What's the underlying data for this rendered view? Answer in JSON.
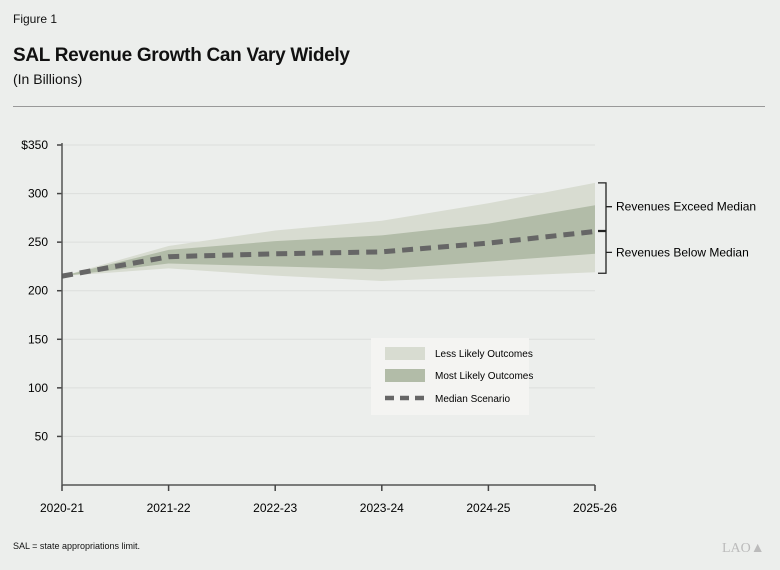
{
  "header": {
    "figure_label": "Figure 1",
    "title": "SAL Revenue Growth Can Vary Widely",
    "subtitle": "(In Billions)"
  },
  "footnote": "SAL = state appropriations limit.",
  "logo_text": "LAO",
  "chart_data": {
    "type": "area",
    "categories": [
      "2020-21",
      "2021-22",
      "2022-23",
      "2023-24",
      "2024-25",
      "2025-26"
    ],
    "ylim": [
      0,
      350
    ],
    "yticks": [
      50,
      100,
      150,
      200,
      250,
      300,
      350
    ],
    "ytick_labels": [
      "50",
      "100",
      "150",
      "200",
      "250",
      "300",
      "$350"
    ],
    "grid": true,
    "legend_position": "center-right",
    "series": [
      {
        "name": "Less Likely Outcomes",
        "type": "band",
        "color": "#d8dcd1",
        "lower": [
          215,
          223,
          215.5,
          210,
          214.5,
          219
        ],
        "upper": [
          215,
          246,
          262,
          272,
          290,
          311
        ]
      },
      {
        "name": "Most Likely Outcomes",
        "type": "band",
        "color": "#b2bca8",
        "lower": [
          215,
          228,
          225,
          222,
          230,
          238
        ],
        "upper": [
          215,
          242,
          251,
          257,
          269,
          288
        ]
      },
      {
        "name": "Median Scenario",
        "type": "line",
        "style": "dashed",
        "color": "#666666",
        "values": [
          215,
          235,
          238,
          240,
          249,
          261
        ]
      }
    ],
    "annotations": [
      "Revenues Exceed Median",
      "Revenues Below Median"
    ]
  }
}
